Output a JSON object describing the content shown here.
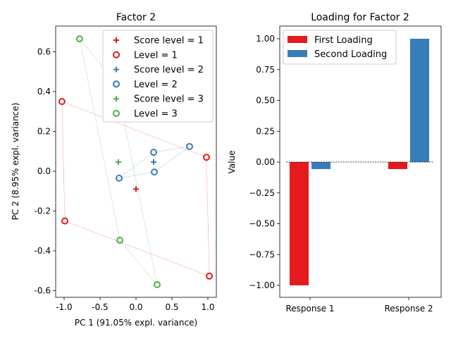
{
  "chart_data": [
    {
      "type": "scatter",
      "title": "Factor 2",
      "xlabel": "PC 1 (91.05% expl. variance)",
      "ylabel": "PC 2 (8.95% expl. variance)",
      "xlim": [
        -1.14,
        1.12
      ],
      "ylim": [
        -0.63,
        0.72
      ],
      "xticks": [
        "-1.0",
        "-0.5",
        "0.0",
        "0.5",
        "1.0"
      ],
      "xtick_values": [
        -1.0,
        -0.5,
        0.0,
        0.5,
        1.0
      ],
      "yticks": [
        "0.6",
        "0.4",
        "0.2",
        "0.0",
        "-0.2",
        "-0.4",
        "-0.6"
      ],
      "ytick_values": [
        0.6,
        0.4,
        0.2,
        0.0,
        -0.2,
        -0.4,
        -0.6
      ],
      "grid": false,
      "legend_position": "top-right",
      "series": [
        {
          "name": "Score level = 1",
          "marker": "plus",
          "color": "#e41a1c",
          "points": [
            [
              0.0,
              -0.09
            ]
          ]
        },
        {
          "name": "Level = 1",
          "marker": "circle",
          "color": "#e41a1c",
          "points": [
            [
              -1.03,
              0.35
            ],
            [
              0.98,
              0.07
            ],
            [
              1.02,
              -0.527
            ],
            [
              -0.99,
              -0.25
            ]
          ]
        },
        {
          "name": "Score level = 2",
          "marker": "plus",
          "color": "#377eb8",
          "points": [
            [
              0.245,
              0.046
            ]
          ]
        },
        {
          "name": "Level = 2",
          "marker": "circle",
          "color": "#377eb8",
          "points": [
            [
              -0.235,
              -0.035
            ],
            [
              0.245,
              0.095
            ],
            [
              0.745,
              0.124
            ],
            [
              0.255,
              -0.004
            ]
          ]
        },
        {
          "name": "Score level = 3",
          "marker": "plus",
          "color": "#4daf4a",
          "points": [
            [
              -0.245,
              0.046
            ]
          ]
        },
        {
          "name": "Level = 3",
          "marker": "circle",
          "color": "#4daf4a",
          "points": [
            [
              -0.785,
              0.665
            ],
            [
              -0.275,
              0.442
            ],
            [
              0.294,
              -0.57
            ],
            [
              -0.225,
              -0.347
            ]
          ]
        }
      ]
    },
    {
      "type": "bar",
      "title": "Loading for Factor 2",
      "xlabel": "",
      "ylabel": "Value",
      "categories": [
        "Response 1",
        "Response 2"
      ],
      "ylim": [
        -1.1,
        1.1
      ],
      "yticks": [
        "1.00",
        "0.75",
        "0.50",
        "0.25",
        "0.00",
        "−0.25",
        "−0.50",
        "−0.75",
        "−1.00"
      ],
      "ytick_values": [
        1.0,
        0.75,
        0.5,
        0.25,
        0.0,
        -0.25,
        -0.5,
        -0.75,
        -1.0
      ],
      "grid": false,
      "legend_position": "top-left",
      "series": [
        {
          "name": "First Loading",
          "color": "#e41a1c",
          "values": [
            -1.0,
            -0.057
          ]
        },
        {
          "name": "Second Loading",
          "color": "#377eb8",
          "values": [
            -0.057,
            1.0
          ]
        }
      ]
    }
  ]
}
